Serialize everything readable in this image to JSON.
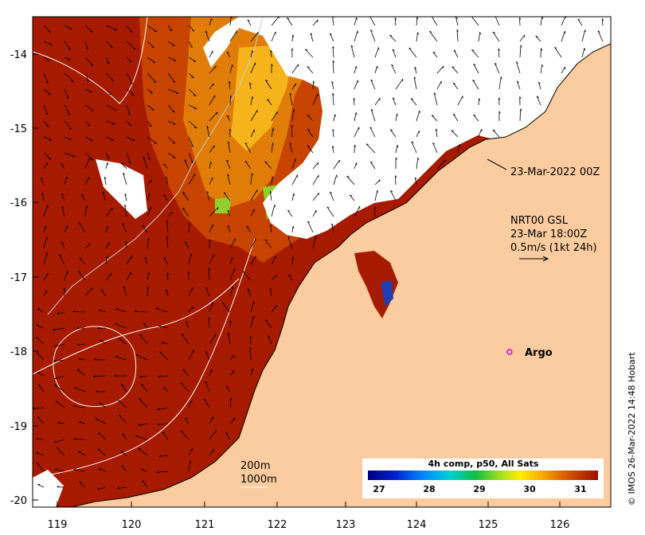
{
  "axes": {
    "x_ticks": [
      "119",
      "120",
      "121",
      "122",
      "123",
      "124",
      "125",
      "126"
    ],
    "y_ticks": [
      "-14",
      "-15",
      "-16",
      "-17",
      "-18",
      "-19",
      "-20"
    ]
  },
  "annotations": {
    "track_time": "23-Mar-2022 00Z",
    "currents_source": "NRT00 GSL",
    "currents_time": "23-Mar 18:00Z",
    "vector_scale": "0.5m/s (1kt 24h)",
    "argo_label": "Argo",
    "contour_200": "200m",
    "contour_1000": "1000m"
  },
  "colorbar": {
    "title": "4h comp, p50, All Sats",
    "ticks": [
      "27",
      "28",
      "29",
      "30",
      "31"
    ],
    "range": [
      26.7,
      31.3
    ]
  },
  "credit": "© IMOS 26-Mar-2022 14:48 Hobart",
  "colors": {
    "land": "#fbcc9f",
    "sst_warmest": "#a61a00",
    "no_data": "#ffffff",
    "argo_marker": "#d900d9"
  },
  "chart_data": {
    "type": "heatmap",
    "variable": "sea surface temperature",
    "lon_range": [
      118.6,
      126.7
    ],
    "lat_range": [
      -20.1,
      -13.5
    ],
    "argo_floats": [
      {
        "lon": 125.3,
        "lat": -18.0
      }
    ]
  }
}
